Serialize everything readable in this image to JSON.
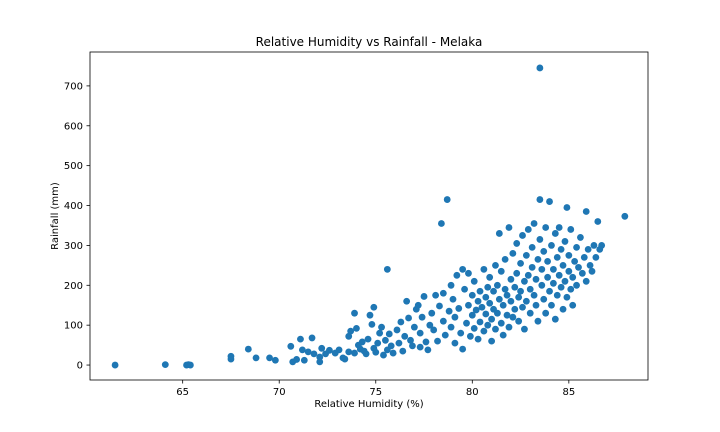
{
  "chart_data": {
    "type": "scatter",
    "title": "Relative Humidity vs Rainfall - Melaka",
    "xlabel": "Relative Humidity (%)",
    "ylabel": "Rainfall (mm)",
    "xlim": [
      60.2,
      89.1
    ],
    "ylim": [
      -37.5,
      785
    ],
    "xticks": [
      65,
      70,
      75,
      80,
      85
    ],
    "yticks": [
      0,
      100,
      200,
      300,
      400,
      500,
      600,
      700
    ],
    "grid": false,
    "legend": "none",
    "marker_color": "#1f77b4",
    "series": [
      {
        "points": [
          [
            61.5,
            0
          ],
          [
            64.1,
            1
          ],
          [
            65.2,
            0
          ],
          [
            65.3,
            1
          ],
          [
            65.4,
            0
          ],
          [
            67.5,
            15
          ],
          [
            67.5,
            22
          ],
          [
            68.4,
            40
          ],
          [
            68.8,
            18
          ],
          [
            69.5,
            18
          ],
          [
            69.8,
            12
          ],
          [
            70.6,
            47
          ],
          [
            70.7,
            8
          ],
          [
            70.9,
            14
          ],
          [
            71.1,
            65
          ],
          [
            71.2,
            38
          ],
          [
            71.3,
            12
          ],
          [
            71.5,
            33
          ],
          [
            71.7,
            68
          ],
          [
            71.8,
            28
          ],
          [
            72.1,
            20
          ],
          [
            72.1,
            8
          ],
          [
            72.2,
            42
          ],
          [
            72.4,
            28
          ],
          [
            72.6,
            37
          ],
          [
            72.9,
            30
          ],
          [
            73.1,
            38
          ],
          [
            73.3,
            18
          ],
          [
            73.4,
            15
          ],
          [
            73.6,
            33
          ],
          [
            73.6,
            72
          ],
          [
            73.7,
            85
          ],
          [
            73.9,
            30
          ],
          [
            73.9,
            130
          ],
          [
            74.0,
            92
          ],
          [
            74.1,
            50
          ],
          [
            74.2,
            40
          ],
          [
            74.3,
            58
          ],
          [
            74.4,
            35
          ],
          [
            74.5,
            28
          ],
          [
            74.6,
            65
          ],
          [
            74.7,
            125
          ],
          [
            74.8,
            102
          ],
          [
            74.9,
            145
          ],
          [
            74.9,
            42
          ],
          [
            75.0,
            32
          ],
          [
            75.1,
            55
          ],
          [
            75.2,
            80
          ],
          [
            75.3,
            95
          ],
          [
            75.4,
            25
          ],
          [
            75.5,
            62
          ],
          [
            75.6,
            240
          ],
          [
            75.6,
            38
          ],
          [
            75.7,
            78
          ],
          [
            75.8,
            48
          ],
          [
            75.9,
            30
          ],
          [
            76.1,
            88
          ],
          [
            76.2,
            55
          ],
          [
            76.3,
            108
          ],
          [
            76.4,
            35
          ],
          [
            76.5,
            72
          ],
          [
            76.6,
            160
          ],
          [
            76.7,
            118
          ],
          [
            76.8,
            62
          ],
          [
            76.9,
            48
          ],
          [
            77.0,
            95
          ],
          [
            77.1,
            140
          ],
          [
            77.2,
            150
          ],
          [
            77.3,
            80
          ],
          [
            77.3,
            45
          ],
          [
            77.4,
            120
          ],
          [
            77.5,
            172
          ],
          [
            77.6,
            58
          ],
          [
            77.7,
            38
          ],
          [
            77.8,
            100
          ],
          [
            77.9,
            130
          ],
          [
            78.0,
            88
          ],
          [
            78.1,
            175
          ],
          [
            78.2,
            60
          ],
          [
            78.3,
            148
          ],
          [
            78.4,
            355
          ],
          [
            78.5,
            180
          ],
          [
            78.5,
            110
          ],
          [
            78.6,
            75
          ],
          [
            78.7,
            415
          ],
          [
            78.8,
            135
          ],
          [
            78.9,
            200
          ],
          [
            78.9,
            95
          ],
          [
            79.0,
            165
          ],
          [
            79.1,
            120
          ],
          [
            79.1,
            55
          ],
          [
            79.2,
            225
          ],
          [
            79.3,
            142
          ],
          [
            79.4,
            80
          ],
          [
            79.5,
            240
          ],
          [
            79.5,
            40
          ],
          [
            79.6,
            190
          ],
          [
            79.7,
            105
          ],
          [
            79.8,
            150
          ],
          [
            79.8,
            230
          ],
          [
            79.9,
            72
          ],
          [
            80.0,
            175
          ],
          [
            80.0,
            125
          ],
          [
            80.1,
            92
          ],
          [
            80.1,
            210
          ],
          [
            80.2,
            138
          ],
          [
            80.3,
            160
          ],
          [
            80.3,
            65
          ],
          [
            80.4,
            185
          ],
          [
            80.4,
            108
          ],
          [
            80.5,
            145
          ],
          [
            80.6,
            240
          ],
          [
            80.6,
            85
          ],
          [
            80.7,
            170
          ],
          [
            80.7,
            128
          ],
          [
            80.8,
            195
          ],
          [
            80.8,
            100
          ],
          [
            80.9,
            155
          ],
          [
            80.9,
            220
          ],
          [
            81.0,
            115
          ],
          [
            81.0,
            60
          ],
          [
            81.1,
            185
          ],
          [
            81.1,
            140
          ],
          [
            81.2,
            250
          ],
          [
            81.2,
            90
          ],
          [
            81.3,
            200
          ],
          [
            81.3,
            130
          ],
          [
            81.4,
            165
          ],
          [
            81.4,
            330
          ],
          [
            81.5,
            105
          ],
          [
            81.5,
            235
          ],
          [
            81.6,
            150
          ],
          [
            81.6,
            75
          ],
          [
            81.7,
            190
          ],
          [
            81.7,
            265
          ],
          [
            81.8,
            125
          ],
          [
            81.8,
            175
          ],
          [
            81.9,
            345
          ],
          [
            81.9,
            95
          ],
          [
            82.0,
            215
          ],
          [
            82.0,
            160
          ],
          [
            82.1,
            280
          ],
          [
            82.1,
            120
          ],
          [
            82.2,
            195
          ],
          [
            82.2,
            140
          ],
          [
            82.3,
            305
          ],
          [
            82.3,
            230
          ],
          [
            82.4,
            170
          ],
          [
            82.4,
            110
          ],
          [
            82.5,
            255
          ],
          [
            82.5,
            185
          ],
          [
            82.6,
            325
          ],
          [
            82.6,
            145
          ],
          [
            82.7,
            210
          ],
          [
            82.7,
            90
          ],
          [
            82.8,
            275
          ],
          [
            82.8,
            160
          ],
          [
            82.9,
            340
          ],
          [
            82.9,
            225
          ],
          [
            83.0,
            190
          ],
          [
            83.0,
            130
          ],
          [
            83.1,
            295
          ],
          [
            83.1,
            245
          ],
          [
            83.2,
            175
          ],
          [
            83.2,
            355
          ],
          [
            83.3,
            215
          ],
          [
            83.3,
            150
          ],
          [
            83.4,
            265
          ],
          [
            83.4,
            110
          ],
          [
            83.5,
            745
          ],
          [
            83.5,
            415
          ],
          [
            83.5,
            315
          ],
          [
            83.6,
            200
          ],
          [
            83.6,
            240
          ],
          [
            83.7,
            165
          ],
          [
            83.7,
            285
          ],
          [
            83.8,
            345
          ],
          [
            83.8,
            130
          ],
          [
            83.9,
            220
          ],
          [
            83.9,
            260
          ],
          [
            84.0,
            185
          ],
          [
            84.0,
            410
          ],
          [
            84.1,
            300
          ],
          [
            84.1,
            150
          ],
          [
            84.2,
            240
          ],
          [
            84.2,
            205
          ],
          [
            84.3,
            330
          ],
          [
            84.3,
            115
          ],
          [
            84.4,
            270
          ],
          [
            84.4,
            175
          ],
          [
            84.5,
            225
          ],
          [
            84.5,
            345
          ],
          [
            84.6,
            195
          ],
          [
            84.6,
            290
          ],
          [
            84.7,
            140
          ],
          [
            84.7,
            250
          ],
          [
            84.8,
            210
          ],
          [
            84.8,
            310
          ],
          [
            84.9,
            170
          ],
          [
            84.9,
            395
          ],
          [
            85.0,
            235
          ],
          [
            85.0,
            275
          ],
          [
            85.1,
            190
          ],
          [
            85.1,
            340
          ],
          [
            85.2,
            220
          ],
          [
            85.2,
            150
          ],
          [
            85.3,
            260
          ],
          [
            85.4,
            295
          ],
          [
            85.4,
            200
          ],
          [
            85.5,
            245
          ],
          [
            85.6,
            320
          ],
          [
            85.7,
            230
          ],
          [
            85.8,
            270
          ],
          [
            85.9,
            385
          ],
          [
            85.9,
            210
          ],
          [
            86.0,
            290
          ],
          [
            86.1,
            250
          ],
          [
            86.2,
            235
          ],
          [
            86.3,
            300
          ],
          [
            86.4,
            270
          ],
          [
            86.5,
            360
          ],
          [
            86.6,
            290
          ],
          [
            86.7,
            300
          ],
          [
            87.9,
            373
          ]
        ]
      }
    ]
  }
}
